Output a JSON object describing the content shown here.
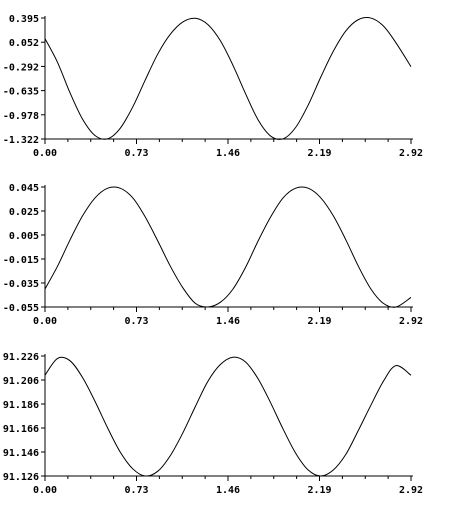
{
  "chart_data": [
    {
      "type": "line",
      "title": "",
      "xlabel": "",
      "ylabel": "",
      "xlim": [
        0.0,
        2.92
      ],
      "ylim": [
        -1.322,
        0.395
      ],
      "grid": false,
      "x_ticks": [
        "0.00",
        "0.73",
        "1.46",
        "2.19",
        "2.92"
      ],
      "y_ticks": [
        "0.395",
        "0.052",
        "-0.292",
        "-0.635",
        "-0.978",
        "-1.322"
      ],
      "series": [
        {
          "x": [
            0.0,
            0.1,
            0.2,
            0.3,
            0.4,
            0.5,
            0.6,
            0.7,
            0.8,
            0.9,
            1.0,
            1.1,
            1.2,
            1.3,
            1.4,
            1.5,
            1.6,
            1.7,
            1.8,
            1.9,
            2.0,
            2.1,
            2.2,
            2.3,
            2.4,
            2.5,
            2.6,
            2.7,
            2.8,
            2.92
          ],
          "values": [
            0.102,
            -0.235,
            -0.668,
            -1.042,
            -1.274,
            -1.319,
            -1.17,
            -0.867,
            -0.484,
            -0.115,
            0.165,
            0.339,
            0.391,
            0.301,
            0.07,
            -0.278,
            -0.679,
            -1.05,
            -1.28,
            -1.319,
            -1.157,
            -0.839,
            -0.444,
            -0.077,
            0.212,
            0.372,
            0.394,
            0.281,
            0.043,
            -0.296
          ]
        }
      ]
    },
    {
      "type": "line",
      "title": "",
      "xlabel": "",
      "ylabel": "",
      "xlim": [
        0.0,
        2.92
      ],
      "ylim": [
        -0.055,
        0.045
      ],
      "grid": false,
      "x_ticks": [
        "0.00",
        "0.73",
        "1.46",
        "2.19",
        "2.92"
      ],
      "y_ticks": [
        "0.045",
        "0.025",
        "0.005",
        "-0.015",
        "-0.035",
        "-0.055"
      ],
      "series": [
        {
          "x": [
            0.0,
            0.1,
            0.2,
            0.3,
            0.4,
            0.5,
            0.6,
            0.7,
            0.8,
            0.9,
            1.0,
            1.1,
            1.2,
            1.3,
            1.4,
            1.5,
            1.6,
            1.7,
            1.8,
            1.9,
            2.0,
            2.1,
            2.2,
            2.3,
            2.4,
            2.5,
            2.6,
            2.7,
            2.8,
            2.92
          ],
          "values": [
            -0.04,
            -0.021,
            0.001,
            0.021,
            0.036,
            0.044,
            0.044,
            0.036,
            0.02,
            0.0,
            -0.021,
            -0.039,
            -0.052,
            -0.055,
            -0.051,
            -0.04,
            -0.022,
            0.0,
            0.02,
            0.036,
            0.044,
            0.044,
            0.036,
            0.021,
            0.001,
            -0.021,
            -0.04,
            -0.052,
            -0.055,
            -0.047
          ]
        }
      ]
    },
    {
      "type": "line",
      "title": "",
      "xlabel": "",
      "ylabel": "",
      "xlim": [
        0.0,
        2.92
      ],
      "ylim": [
        91.126,
        91.226
      ],
      "grid": false,
      "x_ticks": [
        "0.00",
        "0.73",
        "1.46",
        "2.19",
        "2.92"
      ],
      "y_ticks": [
        "91.226",
        "91.206",
        "91.186",
        "91.166",
        "91.146",
        "91.126"
      ],
      "series": [
        {
          "x": [
            0.0,
            0.1,
            0.2,
            0.3,
            0.4,
            0.5,
            0.6,
            0.7,
            0.8,
            0.9,
            1.0,
            1.1,
            1.2,
            1.3,
            1.4,
            1.5,
            1.6,
            1.7,
            1.8,
            1.9,
            2.0,
            2.1,
            2.2,
            2.3,
            2.4,
            2.5,
            2.6,
            2.7,
            2.8,
            2.92
          ],
          "values": [
            91.21,
            91.224,
            91.222,
            91.208,
            91.188,
            91.166,
            91.146,
            91.132,
            91.126,
            91.13,
            91.143,
            91.162,
            91.184,
            91.205,
            91.219,
            91.225,
            91.221,
            91.207,
            91.187,
            91.165,
            91.145,
            91.131,
            91.126,
            91.131,
            91.144,
            91.164,
            91.185,
            91.205,
            91.218,
            91.21
          ]
        }
      ]
    }
  ]
}
